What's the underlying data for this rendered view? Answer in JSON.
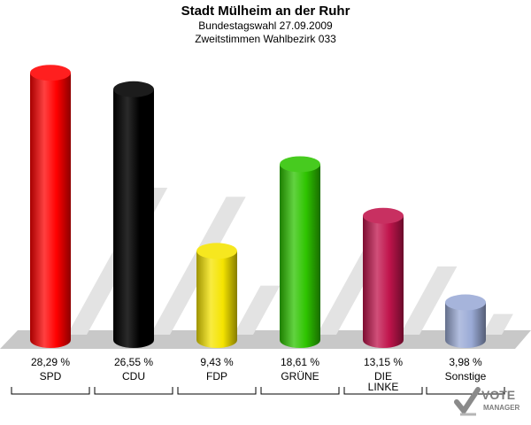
{
  "header": {
    "title": "Stadt Mülheim an der Ruhr",
    "subtitle1": "Bundestagswahl 27.09.2009",
    "subtitle2": "Zweitstimmen Wahlbezirk 033"
  },
  "chart_data": {
    "type": "bar",
    "categories": [
      "SPD",
      "CDU",
      "FDP",
      "GRÜNE",
      "DIE LINKE",
      "Sonstige"
    ],
    "category_lines": [
      [
        "SPD"
      ],
      [
        "CDU"
      ],
      [
        "FDP"
      ],
      [
        "GRÜNE"
      ],
      [
        "DIE",
        "LINKE"
      ],
      [
        "Sonstige"
      ]
    ],
    "values": [
      28.29,
      26.55,
      9.43,
      18.61,
      13.15,
      3.98
    ],
    "value_labels": [
      "28,29 %",
      "26,55 %",
      "9,43 %",
      "18,61 %",
      "13,15 %",
      "3,98 %"
    ],
    "colors": [
      "#ff0000",
      "#000000",
      "#f5e400",
      "#2ec400",
      "#c0144c",
      "#9aaad6"
    ],
    "ylim": [
      0,
      30
    ]
  },
  "logo": {
    "line1": "VOTE",
    "line2": "MANAGER"
  }
}
